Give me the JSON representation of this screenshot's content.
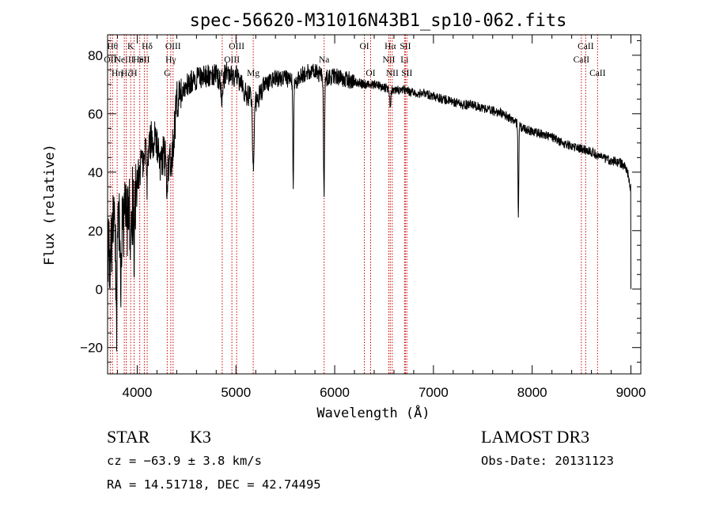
{
  "chart_data": {
    "type": "line",
    "title": "spec-56620-M31016N43B1_sp10-062.fits",
    "xlabel": "Wavelength (Å)",
    "ylabel": "Flux (relative)",
    "xlim": [
      3700,
      9100
    ],
    "ylim": [
      -29,
      87
    ],
    "x_ticks": [
      4000,
      5000,
      6000,
      7000,
      8000,
      9000
    ],
    "y_ticks": [
      -20,
      0,
      20,
      40,
      60,
      80
    ],
    "grid": false,
    "series": [
      {
        "name": "flux",
        "continuum_x": [
          3700,
          3760,
          3800,
          3850,
          3900,
          3950,
          4000,
          4050,
          4100,
          4150,
          4200,
          4250,
          4300,
          4350,
          4400,
          4450,
          4500,
          4600,
          4700,
          4800,
          4850,
          4900,
          5000,
          5100,
          5200,
          5300,
          5400,
          5500,
          5600,
          5700,
          5800,
          5900,
          6000,
          6100,
          6200,
          6300,
          6400,
          6500,
          6600,
          6700,
          6800,
          6900,
          7000,
          7100,
          7200,
          7300,
          7400,
          7500,
          7600,
          7700,
          7800,
          7900,
          8000,
          8100,
          8200,
          8300,
          8400,
          8500,
          8600,
          8700,
          8800,
          8900,
          8960,
          9000
        ],
        "continuum_y": [
          10,
          20,
          18,
          22,
          25,
          28,
          36,
          44,
          48,
          52,
          50,
          46,
          44,
          45,
          64,
          68,
          70,
          72,
          73,
          73,
          70,
          74,
          73,
          67,
          64,
          70,
          72,
          72,
          71,
          74,
          75,
          72,
          73,
          72,
          71,
          70,
          70,
          69,
          68,
          68,
          67,
          67,
          66,
          65,
          64,
          63,
          63,
          62,
          61,
          60,
          58,
          55,
          54,
          53,
          52,
          50,
          49,
          48,
          47,
          45,
          44,
          43,
          41,
          34
        ],
        "absorption_features": [
          {
            "center": 3790,
            "depth": 30,
            "width": 6
          },
          {
            "center": 3835,
            "depth": 20,
            "width": 6
          },
          {
            "center": 3933,
            "depth": 18,
            "width": 5
          },
          {
            "center": 3968,
            "depth": 16,
            "width": 5
          },
          {
            "center": 4101,
            "depth": 12,
            "width": 6
          },
          {
            "center": 4226,
            "depth": 10,
            "width": 5
          },
          {
            "center": 4303,
            "depth": 14,
            "width": 6
          },
          {
            "center": 4861,
            "depth": 8,
            "width": 6
          },
          {
            "center": 5175,
            "depth": 22,
            "width": 8
          },
          {
            "center": 5580,
            "depth": 36,
            "width": 4
          },
          {
            "center": 5892,
            "depth": 40,
            "width": 5
          },
          {
            "center": 6563,
            "depth": 6,
            "width": 6
          },
          {
            "center": 7860,
            "depth": 31,
            "width": 4
          }
        ],
        "drop_end": {
          "x": 9000,
          "y": 0
        }
      }
    ],
    "line_markers": [
      {
        "wavelength": 3750,
        "label": "Hθ",
        "row": 0
      },
      {
        "wavelength": 3727,
        "label": "OII",
        "row": 1
      },
      {
        "wavelength": 3797,
        "label": "Hη",
        "row": 2
      },
      {
        "wavelength": 3869,
        "label": "NeIII",
        "row": 1
      },
      {
        "wavelength": 3889,
        "label": "Hζ",
        "row": 2
      },
      {
        "wavelength": 3934,
        "label": "K",
        "row": 0
      },
      {
        "wavelength": 3968,
        "label": "H",
        "row": 2
      },
      {
        "wavelength": 4026,
        "label": "HeI",
        "row": 1
      },
      {
        "wavelength": 4072,
        "label": "SII",
        "row": 1
      },
      {
        "wavelength": 4101,
        "label": "Hδ",
        "row": 0
      },
      {
        "wavelength": 4304,
        "label": "G",
        "row": 2
      },
      {
        "wavelength": 4340,
        "label": "Hγ",
        "row": 1
      },
      {
        "wavelength": 4363,
        "label": "OIII",
        "row": 0
      },
      {
        "wavelength": 4861,
        "label": "Hβ",
        "row": 2
      },
      {
        "wavelength": 4959,
        "label": "OIII",
        "row": 1
      },
      {
        "wavelength": 5007,
        "label": "OIII",
        "row": 0
      },
      {
        "wavelength": 5175,
        "label": "Mg",
        "row": 2
      },
      {
        "wavelength": 5893,
        "label": "Na",
        "row": 1
      },
      {
        "wavelength": 6300,
        "label": "OI",
        "row": 0
      },
      {
        "wavelength": 6364,
        "label": "OI",
        "row": 2
      },
      {
        "wavelength": 6548,
        "label": "NII",
        "row": 1
      },
      {
        "wavelength": 6563,
        "label": "Hα",
        "row": 0
      },
      {
        "wavelength": 6583,
        "label": "NII",
        "row": 2
      },
      {
        "wavelength": 6707,
        "label": "Li",
        "row": 1
      },
      {
        "wavelength": 6716,
        "label": "SII",
        "row": 0
      },
      {
        "wavelength": 6731,
        "label": "SII",
        "row": 2
      },
      {
        "wavelength": 8498,
        "label": "CaII",
        "row": 1
      },
      {
        "wavelength": 8542,
        "label": "CaII",
        "row": 0
      },
      {
        "wavelength": 8662,
        "label": "CaII",
        "row": 2
      }
    ]
  },
  "info": {
    "object_class": "STAR",
    "subclass": "K3",
    "survey": "LAMOST DR3",
    "cz": "cz = −63.9 ± 3.8 km/s",
    "obs_date": "Obs-Date: 20131123",
    "coords": "RA =  14.51718, DEC =  42.74495"
  }
}
